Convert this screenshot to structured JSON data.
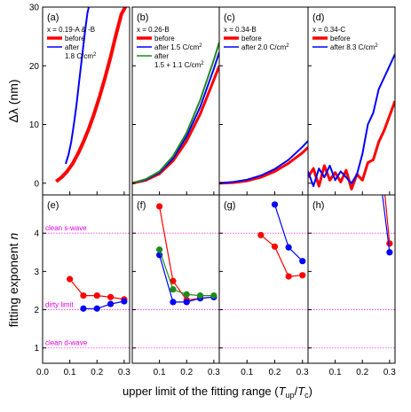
{
  "chart_data": [
    {
      "type": "line",
      "panel_label": "(a)",
      "legend_title": "x = 0.19-A & -B",
      "legend_entries": [
        {
          "name": "before",
          "color": "#ff0000"
        },
        {
          "name": "after",
          "color": "#0000ff",
          "extra_line": "1.8 C/cm"
        }
      ],
      "ylabel": "Δλ (nm)",
      "ylim": [
        -2,
        30
      ],
      "yticks": [
        "0",
        "10",
        "20",
        "30"
      ],
      "xlim": [
        0,
        0.32
      ],
      "series": [
        {
          "name": "before",
          "color": "#ff0000",
          "width": 4,
          "x": [
            0.05,
            0.07,
            0.09,
            0.11,
            0.13,
            0.15,
            0.17,
            0.19,
            0.21,
            0.23,
            0.25,
            0.27,
            0.29,
            0.31
          ],
          "y": [
            0.3,
            1.0,
            2.0,
            3.3,
            5.0,
            7.0,
            9.3,
            11.9,
            14.8,
            18.0,
            21.5,
            25.3,
            28.8,
            30.5
          ]
        },
        {
          "name": "after",
          "color": "#0000ff",
          "width": 2,
          "x": [
            0.085,
            0.095,
            0.105,
            0.115,
            0.125,
            0.135,
            0.145,
            0.155,
            0.165,
            0.175
          ],
          "y": [
            3.3,
            4.8,
            7.0,
            10.0,
            13.5,
            17.5,
            21.5,
            25.5,
            29.0,
            31.0
          ]
        }
      ]
    },
    {
      "type": "line",
      "panel_label": "(b)",
      "legend_title": "x = 0.26-B",
      "legend_entries": [
        {
          "name": "before",
          "color": "#ff0000"
        },
        {
          "name": "after 1.5 C/cm",
          "color": "#0000ff"
        },
        {
          "name": "after",
          "color": "#1f8a1f",
          "extra_line": "1.5 + 1.1 C/cm"
        }
      ],
      "ylim": [
        -2,
        30
      ],
      "xlim": [
        0,
        0.32
      ],
      "series": [
        {
          "name": "before",
          "color": "#ff0000",
          "width": 3,
          "x": [
            0.0,
            0.05,
            0.1,
            0.15,
            0.2,
            0.25,
            0.3,
            0.32
          ],
          "y": [
            0.0,
            0.5,
            1.6,
            3.8,
            7.2,
            11.8,
            17.6,
            20.0
          ]
        },
        {
          "name": "after 1.5 C/cm",
          "color": "#0000ff",
          "width": 2,
          "x": [
            0.0,
            0.05,
            0.1,
            0.15,
            0.2,
            0.25,
            0.3,
            0.32
          ],
          "y": [
            0.0,
            0.6,
            1.8,
            4.2,
            8.0,
            13.0,
            19.5,
            22.3
          ]
        },
        {
          "name": "after 1.5 + 1.1 C/cm",
          "color": "#1f8a1f",
          "width": 2,
          "x": [
            0.0,
            0.05,
            0.1,
            0.15,
            0.2,
            0.25,
            0.3,
            0.32
          ],
          "y": [
            0.0,
            0.7,
            2.0,
            4.6,
            8.6,
            14.2,
            21.0,
            24.0
          ]
        }
      ]
    },
    {
      "type": "line",
      "panel_label": "(c)",
      "legend_title": "x = 0.34-B",
      "legend_entries": [
        {
          "name": "before",
          "color": "#ff0000"
        },
        {
          "name": "after 2.0 C/cm",
          "color": "#0000ff"
        }
      ],
      "ylim": [
        -2,
        30
      ],
      "xlim": [
        0,
        0.32
      ],
      "series": [
        {
          "name": "before",
          "color": "#ff0000",
          "width": 3,
          "x": [
            0.0,
            0.05,
            0.1,
            0.15,
            0.2,
            0.25,
            0.3,
            0.32
          ],
          "y": [
            0.0,
            0.1,
            0.4,
            1.0,
            2.0,
            3.4,
            5.2,
            6.1
          ]
        },
        {
          "name": "after 2.0 C/cm",
          "color": "#0000ff",
          "width": 2,
          "x": [
            0.0,
            0.05,
            0.1,
            0.15,
            0.2,
            0.25,
            0.3,
            0.32
          ],
          "y": [
            0.0,
            0.2,
            0.6,
            1.3,
            2.4,
            4.0,
            6.2,
            7.2
          ]
        }
      ]
    },
    {
      "type": "line",
      "panel_label": "(d)",
      "legend_title": "x = 0.34-C",
      "legend_entries": [
        {
          "name": "before",
          "color": "#ff0000"
        },
        {
          "name": "after 8.3 C/cm",
          "color": "#0000ff"
        }
      ],
      "ylim": [
        -2,
        30
      ],
      "xlim": [
        0,
        0.32
      ],
      "series": [
        {
          "name": "before",
          "color": "#ff0000",
          "width": 3,
          "x": [
            0.0,
            0.02,
            0.04,
            0.06,
            0.08,
            0.1,
            0.12,
            0.14,
            0.16,
            0.18,
            0.2,
            0.22,
            0.24,
            0.26,
            0.28,
            0.3,
            0.32
          ],
          "y": [
            1.0,
            2.5,
            -0.5,
            3.0,
            0.5,
            1.8,
            0.2,
            2.2,
            -1.0,
            1.5,
            0.5,
            3.5,
            4.0,
            7.0,
            9.0,
            11.5,
            14.0
          ]
        },
        {
          "name": "after 8.3 C/cm",
          "color": "#0000ff",
          "width": 2,
          "x": [
            0.0,
            0.02,
            0.04,
            0.06,
            0.08,
            0.1,
            0.12,
            0.14,
            0.16,
            0.18,
            0.2,
            0.22,
            0.24,
            0.26,
            0.28,
            0.3,
            0.32
          ],
          "y": [
            2.0,
            -0.5,
            2.5,
            1.0,
            3.0,
            0.5,
            2.0,
            1.0,
            0.0,
            1.5,
            5.0,
            10.0,
            12.0,
            16.0,
            18.0,
            20.0,
            22.0
          ]
        }
      ]
    },
    {
      "type": "scatter",
      "panel_label": "(e)",
      "ylabel": "fitting exponent n",
      "ylim": [
        0.6,
        5.0
      ],
      "yticks": [
        "1",
        "2",
        "3",
        "4"
      ],
      "xlim": [
        0,
        0.32
      ],
      "xticks": [
        "0.0",
        "0.1",
        "0.2",
        "0.3"
      ],
      "annotations": [
        "clean s-wave",
        "dirty limit",
        "clean d-wave"
      ],
      "reference_lines": [
        4,
        2,
        1
      ],
      "series": [
        {
          "name": "before",
          "color": "#ff0000",
          "x": [
            0.1,
            0.15,
            0.2,
            0.25,
            0.3
          ],
          "y": [
            2.8,
            2.37,
            2.37,
            2.33,
            2.27
          ]
        },
        {
          "name": "after",
          "color": "#0000ff",
          "x": [
            0.15,
            0.2,
            0.25,
            0.3
          ],
          "y": [
            2.03,
            2.03,
            2.15,
            2.22
          ]
        }
      ]
    },
    {
      "type": "scatter",
      "panel_label": "(f)",
      "ylim": [
        0.6,
        5.0
      ],
      "xlim": [
        0,
        0.32
      ],
      "xticks": [
        "0.1",
        "0.2",
        "0.3"
      ],
      "reference_lines": [
        4,
        2,
        1
      ],
      "series": [
        {
          "name": "before",
          "color": "#ff0000",
          "x": [
            0.1,
            0.15,
            0.2,
            0.25,
            0.3
          ],
          "y": [
            4.7,
            2.75,
            2.25,
            2.3,
            2.33
          ]
        },
        {
          "name": "after 1.5 C/cm",
          "color": "#0000ff",
          "x": [
            0.1,
            0.15,
            0.2,
            0.25,
            0.3
          ],
          "y": [
            3.43,
            2.2,
            2.2,
            2.3,
            2.33
          ]
        },
        {
          "name": "after 1.5 + 1.1 C/cm",
          "color": "#1f8a1f",
          "x": [
            0.1,
            0.15,
            0.2,
            0.25,
            0.3
          ],
          "y": [
            3.57,
            2.53,
            2.4,
            2.37,
            2.37
          ]
        }
      ]
    },
    {
      "type": "scatter",
      "panel_label": "(g)",
      "ylim": [
        0.6,
        5.0
      ],
      "xlim": [
        0,
        0.32
      ],
      "xticks": [
        "0.1",
        "0.2",
        "0.3"
      ],
      "reference_lines": [
        4,
        2,
        1
      ],
      "series": [
        {
          "name": "before",
          "color": "#ff0000",
          "x": [
            0.15,
            0.2,
            0.25,
            0.3
          ],
          "y": [
            3.95,
            3.65,
            2.87,
            2.9
          ]
        },
        {
          "name": "after 2.0 C/cm",
          "color": "#0000ff",
          "x": [
            0.2,
            0.25,
            0.3
          ],
          "y": [
            4.75,
            3.63,
            3.27
          ]
        }
      ]
    },
    {
      "type": "scatter",
      "panel_label": "(h)",
      "ylim": [
        0.6,
        5.0
      ],
      "xlim": [
        0,
        0.32
      ],
      "xticks": [
        "0.1",
        "0.2",
        "0.3"
      ],
      "reference_lines": [
        4,
        2,
        1
      ],
      "series": [
        {
          "name": "before",
          "color": "#ff0000",
          "x": [
            0.28,
            0.3
          ],
          "y": [
            5.2,
            3.73
          ]
        },
        {
          "name": "after 8.3 C/cm",
          "color": "#0000ff",
          "x": [
            0.27,
            0.3
          ],
          "y": [
            5.2,
            3.5
          ]
        }
      ]
    }
  ],
  "texts": {
    "y_top_label": "Δλ (nm)",
    "y_bottom_label": "fitting exponent",
    "y_bottom_italic": "n",
    "x_label": "upper limit of the fitting range (",
    "x_label_tup": "T",
    "x_label_up": "up",
    "x_label_slash": "/",
    "x_label_tc": "T",
    "x_label_c": "c",
    "x_label_end": ")",
    "superscript_2": "2"
  }
}
